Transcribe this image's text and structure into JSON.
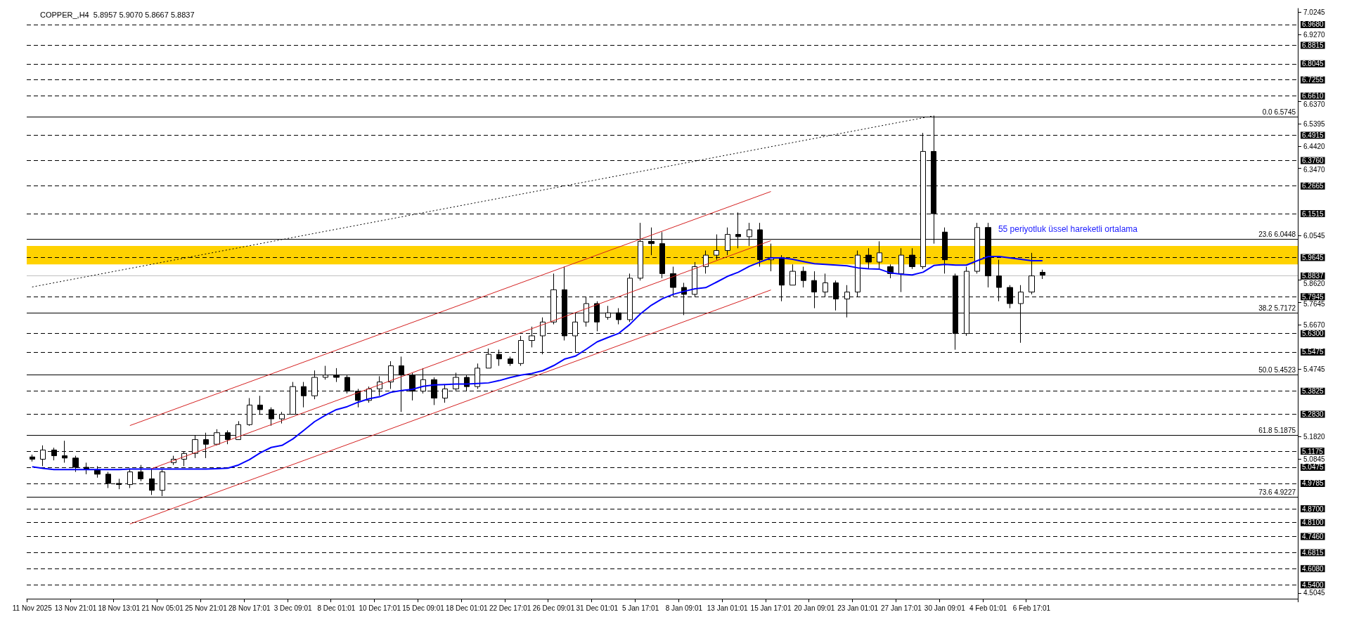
{
  "chart_data": {
    "type": "candlestick",
    "title": "COPPER_,H4  5.8957 5.9070 5.8667 5.8837",
    "categories": [
      "11 Nov 2025",
      null,
      null,
      null,
      "13 Nov 21:01",
      null,
      null,
      null,
      "18 Nov 13:01",
      null,
      null,
      null,
      "21 Nov 05:01",
      null,
      null,
      null,
      "25 Nov 21:01",
      null,
      null,
      null,
      "28 Nov 17:01",
      null,
      null,
      null,
      "3 Dec 09:01",
      null,
      null,
      null,
      "8 Dec 01:01",
      null,
      null,
      null,
      "10 Dec 17:01",
      null,
      null,
      null,
      "15 Dec 09:01",
      null,
      null,
      null,
      "18 Dec 01:01",
      null,
      null,
      null,
      "22 Dec 17:01",
      null,
      null,
      null,
      "26 Dec 09:01",
      null,
      null,
      null,
      "31 Dec 01:01",
      null,
      null,
      null,
      "5 Jan 17:01",
      null,
      null,
      null,
      "8 Jan 09:01",
      null,
      null,
      null,
      "13 Jan 01:01",
      null,
      null,
      null,
      "15 Jan 17:01",
      null,
      null,
      null,
      "20 Jan 09:01",
      null,
      null,
      null,
      "23 Jan 01:01",
      null,
      null,
      null,
      "27 Jan 17:01",
      null,
      null,
      null,
      "30 Jan 09:01",
      null,
      null,
      null,
      "4 Feb 01:01",
      null,
      null,
      null,
      "6 Feb 17:01",
      null,
      null,
      null,
      null,
      null,
      null,
      null,
      null,
      null,
      null,
      null,
      null,
      null,
      null,
      null,
      null,
      null,
      null,
      null,
      null,
      null,
      null,
      null,
      null
    ],
    "ohlc": [
      [
        5.095,
        5.105,
        5.075,
        5.085
      ],
      [
        5.085,
        5.145,
        5.055,
        5.125
      ],
      [
        5.125,
        5.135,
        5.08,
        5.1
      ],
      [
        5.1,
        5.165,
        5.07,
        5.09
      ],
      [
        5.09,
        5.1,
        5.03,
        5.05
      ],
      [
        5.05,
        5.07,
        5.02,
        5.04
      ],
      [
        5.04,
        5.055,
        5.005,
        5.02
      ],
      [
        5.02,
        5.03,
        4.96,
        4.98
      ],
      [
        4.98,
        5.0,
        4.955,
        4.975
      ],
      [
        4.975,
        5.045,
        4.96,
        5.03
      ],
      [
        5.03,
        5.06,
        4.99,
        5.0
      ],
      [
        5.0,
        5.045,
        4.93,
        4.95
      ],
      [
        4.95,
        5.04,
        4.925,
        5.03
      ],
      [
        5.07,
        5.1,
        5.06,
        5.085
      ],
      [
        5.085,
        5.12,
        5.055,
        5.11
      ],
      [
        5.11,
        5.19,
        5.09,
        5.17
      ],
      [
        5.17,
        5.2,
        5.09,
        5.15
      ],
      [
        5.15,
        5.215,
        5.145,
        5.2
      ],
      [
        5.2,
        5.21,
        5.15,
        5.17
      ],
      [
        5.17,
        5.25,
        5.17,
        5.235
      ],
      [
        5.235,
        5.35,
        5.23,
        5.32
      ],
      [
        5.32,
        5.36,
        5.28,
        5.3
      ],
      [
        5.3,
        5.31,
        5.23,
        5.26
      ],
      [
        5.26,
        5.29,
        5.24,
        5.28
      ],
      [
        5.28,
        5.42,
        5.28,
        5.4
      ],
      [
        5.4,
        5.42,
        5.31,
        5.36
      ],
      [
        5.36,
        5.47,
        5.345,
        5.44
      ],
      [
        5.44,
        5.49,
        5.43,
        5.45
      ],
      [
        5.45,
        5.48,
        5.42,
        5.44
      ],
      [
        5.44,
        5.45,
        5.37,
        5.38
      ],
      [
        5.38,
        5.39,
        5.31,
        5.34
      ],
      [
        5.34,
        5.4,
        5.33,
        5.39
      ],
      [
        5.39,
        5.445,
        5.36,
        5.42
      ],
      [
        5.42,
        5.51,
        5.39,
        5.49
      ],
      [
        5.49,
        5.53,
        5.29,
        5.45
      ],
      [
        5.45,
        5.46,
        5.34,
        5.38
      ],
      [
        5.38,
        5.48,
        5.37,
        5.43
      ],
      [
        5.43,
        5.44,
        5.32,
        5.35
      ],
      [
        5.35,
        5.41,
        5.33,
        5.39
      ],
      [
        5.39,
        5.46,
        5.38,
        5.44
      ],
      [
        5.44,
        5.45,
        5.38,
        5.4
      ],
      [
        5.4,
        5.5,
        5.39,
        5.48
      ],
      [
        5.48,
        5.565,
        5.48,
        5.54
      ],
      [
        5.54,
        5.56,
        5.49,
        5.52
      ],
      [
        5.52,
        5.53,
        5.49,
        5.5
      ],
      [
        5.5,
        5.62,
        5.49,
        5.6
      ],
      [
        5.6,
        5.66,
        5.57,
        5.62
      ],
      [
        5.62,
        5.7,
        5.54,
        5.68
      ],
      [
        5.68,
        5.89,
        5.67,
        5.82
      ],
      [
        5.82,
        5.92,
        5.6,
        5.62
      ],
      [
        5.62,
        5.72,
        5.55,
        5.68
      ],
      [
        5.68,
        5.79,
        5.66,
        5.76
      ],
      [
        5.76,
        5.77,
        5.64,
        5.68
      ],
      [
        5.7,
        5.75,
        5.69,
        5.72
      ],
      [
        5.72,
        5.74,
        5.67,
        5.69
      ],
      [
        5.69,
        5.89,
        5.68,
        5.87
      ],
      [
        5.87,
        6.11,
        5.86,
        6.03
      ],
      [
        6.03,
        6.09,
        5.97,
        6.02
      ],
      [
        6.02,
        6.07,
        5.87,
        5.89
      ],
      [
        5.89,
        5.92,
        5.79,
        5.83
      ],
      [
        5.83,
        5.85,
        5.71,
        5.8
      ],
      [
        5.8,
        5.94,
        5.79,
        5.92
      ],
      [
        5.92,
        5.99,
        5.89,
        5.97
      ],
      [
        5.97,
        6.06,
        5.95,
        5.99
      ],
      [
        5.99,
        6.09,
        5.97,
        6.06
      ],
      [
        6.06,
        6.155,
        6.0,
        6.05
      ],
      [
        6.05,
        6.11,
        6.01,
        6.08
      ],
      [
        6.08,
        6.11,
        5.92,
        5.95
      ],
      [
        5.95,
        6.02,
        5.9,
        5.96
      ],
      [
        5.96,
        5.97,
        5.77,
        5.84
      ],
      [
        5.84,
        5.93,
        5.84,
        5.9
      ],
      [
        5.9,
        5.92,
        5.83,
        5.86
      ],
      [
        5.86,
        5.9,
        5.74,
        5.81
      ],
      [
        5.81,
        5.89,
        5.79,
        5.85
      ],
      [
        5.85,
        5.86,
        5.73,
        5.78
      ],
      [
        5.78,
        5.84,
        5.7,
        5.81
      ],
      [
        5.81,
        5.99,
        5.79,
        5.97
      ],
      [
        5.97,
        6.0,
        5.91,
        5.94
      ],
      [
        5.94,
        6.03,
        5.91,
        5.98
      ],
      [
        5.92,
        5.93,
        5.87,
        5.89
      ],
      [
        5.89,
        6.0,
        5.81,
        5.97
      ],
      [
        5.97,
        6.0,
        5.91,
        5.92
      ],
      [
        5.92,
        6.5,
        5.91,
        6.42
      ],
      [
        6.42,
        6.5745,
        6.02,
        6.15
      ],
      [
        6.07,
        6.09,
        5.89,
        5.95
      ],
      [
        5.88,
        5.89,
        5.56,
        5.63
      ],
      [
        5.63,
        5.92,
        5.62,
        5.9
      ],
      [
        5.9,
        6.11,
        5.89,
        6.09
      ],
      [
        6.09,
        6.11,
        5.83,
        5.88
      ],
      [
        5.88,
        5.95,
        5.77,
        5.83
      ],
      [
        5.83,
        5.84,
        5.74,
        5.76
      ],
      [
        5.76,
        5.84,
        5.59,
        5.81
      ],
      [
        5.81,
        5.98,
        5.8,
        5.88
      ],
      [
        5.8957,
        5.907,
        5.8667,
        5.8837
      ],
      null,
      null,
      null,
      null,
      null,
      null,
      null,
      null,
      null,
      null,
      null,
      null,
      null,
      null,
      null,
      null,
      null,
      null,
      null,
      null,
      null,
      null,
      null
    ],
    "series": [
      {
        "type": "line",
        "color": "#0000ff",
        "values": [
          5.052,
          5.045,
          5.04,
          5.04,
          5.04,
          5.04,
          5.04,
          5.04,
          5.04,
          5.042,
          5.042,
          5.042,
          5.042,
          5.042,
          5.042,
          5.042,
          5.042,
          5.044,
          5.046,
          5.06,
          5.083,
          5.113,
          5.136,
          5.145,
          5.173,
          5.21,
          5.248,
          5.276,
          5.3,
          5.313,
          5.332,
          5.347,
          5.356,
          5.375,
          5.383,
          5.388,
          5.401,
          5.407,
          5.409,
          5.411,
          5.411,
          5.413,
          5.416,
          5.426,
          5.439,
          5.45,
          5.457,
          5.469,
          5.491,
          5.519,
          5.532,
          5.562,
          5.594,
          5.613,
          5.631,
          5.669,
          5.716,
          5.753,
          5.781,
          5.8,
          5.813,
          5.824,
          5.829,
          5.853,
          5.878,
          5.896,
          5.921,
          5.94,
          5.958,
          5.958,
          5.952,
          5.942,
          5.933,
          5.93,
          5.927,
          5.924,
          5.915,
          5.911,
          5.909,
          5.893,
          5.887,
          5.884,
          5.896,
          5.925,
          5.93,
          5.927,
          5.927,
          5.946,
          5.964,
          5.964,
          5.958,
          5.952,
          5.946,
          5.946,
          null,
          null,
          null,
          null,
          null,
          null,
          null,
          null,
          null,
          null,
          null,
          null,
          null,
          null,
          null,
          null,
          null,
          null,
          null,
          null,
          null,
          null,
          null
        ]
      },
      {
        "type": "line",
        "color": "#d42020",
        "values": [
          null,
          null,
          null,
          null,
          null,
          null,
          null,
          null,
          null,
          5.231,
          null,
          null,
          null,
          null,
          null,
          null,
          null,
          null,
          null,
          null,
          null,
          null,
          null,
          null,
          null,
          null,
          null,
          null,
          null,
          null,
          null,
          null,
          null,
          null,
          null,
          null,
          null,
          null,
          null,
          null,
          null,
          null,
          null,
          null,
          null,
          null,
          null,
          null,
          null,
          null,
          null,
          null,
          null,
          null,
          null,
          null,
          null,
          null,
          null,
          null,
          null,
          null,
          null,
          null,
          null,
          null,
          null,
          null,
          6.246,
          null,
          null,
          null,
          null,
          null,
          null,
          null,
          null,
          null,
          null,
          null,
          null,
          null,
          null,
          null,
          null,
          null,
          null,
          null,
          null,
          null,
          null,
          null,
          null,
          null,
          null,
          null,
          null,
          null,
          null,
          null,
          null,
          null,
          null,
          null,
          null,
          null,
          null,
          null,
          null,
          null,
          null,
          null,
          null,
          null,
          null,
          null,
          null
        ]
      },
      {
        "type": "line",
        "color": "#d42020",
        "values": [
          null,
          null,
          null,
          null,
          null,
          null,
          null,
          null,
          null,
          null,
          null,
          5.044,
          null,
          null,
          null,
          null,
          null,
          null,
          null,
          null,
          null,
          null,
          null,
          null,
          null,
          null,
          null,
          null,
          null,
          null,
          null,
          null,
          null,
          null,
          null,
          null,
          null,
          null,
          null,
          null,
          null,
          null,
          null,
          null,
          null,
          null,
          null,
          null,
          null,
          null,
          null,
          null,
          null,
          null,
          null,
          null,
          null,
          null,
          null,
          null,
          null,
          null,
          null,
          null,
          null,
          null,
          null,
          null,
          6.033,
          null,
          null,
          null,
          null,
          null,
          null,
          null,
          null,
          null,
          null,
          null,
          null,
          null,
          null,
          null,
          null,
          null,
          null,
          null,
          null,
          null,
          null,
          null,
          null,
          null,
          null,
          null,
          null,
          null,
          null,
          null,
          null,
          null,
          null,
          null,
          null,
          null,
          null,
          null,
          null,
          null,
          null,
          null,
          null,
          null,
          null,
          null,
          null
        ]
      },
      {
        "type": "line",
        "color": "#d42020",
        "values": [
          null,
          null,
          null,
          null,
          null,
          null,
          null,
          null,
          null,
          4.804,
          null,
          null,
          null,
          null,
          null,
          null,
          null,
          null,
          null,
          null,
          null,
          null,
          null,
          null,
          null,
          null,
          null,
          null,
          null,
          null,
          null,
          null,
          null,
          null,
          null,
          null,
          null,
          null,
          null,
          null,
          null,
          null,
          null,
          null,
          null,
          null,
          null,
          null,
          null,
          null,
          null,
          null,
          null,
          null,
          null,
          null,
          null,
          null,
          null,
          null,
          null,
          null,
          null,
          null,
          null,
          null,
          null,
          null,
          5.819,
          null,
          null,
          null,
          null,
          null,
          null,
          null,
          null,
          null,
          null,
          null,
          null,
          null,
          null,
          null,
          null,
          null,
          null,
          null,
          null,
          null,
          null,
          null,
          null,
          null,
          null,
          null,
          null,
          null,
          null,
          null,
          null,
          null,
          null,
          null,
          null,
          null,
          null,
          null,
          null,
          null,
          null,
          null,
          null,
          null,
          null,
          null,
          null
        ]
      },
      {
        "type": "line",
        "color": "#000000",
        "line_style": "dotted",
        "values": [
          5.832,
          null,
          null,
          null,
          null,
          null,
          null,
          null,
          null,
          null,
          null,
          null,
          null,
          null,
          null,
          null,
          null,
          null,
          null,
          null,
          null,
          null,
          null,
          null,
          null,
          null,
          null,
          null,
          null,
          null,
          null,
          null,
          null,
          null,
          null,
          null,
          null,
          null,
          null,
          null,
          null,
          null,
          null,
          null,
          null,
          null,
          null,
          null,
          null,
          null,
          null,
          null,
          null,
          null,
          null,
          null,
          null,
          null,
          null,
          null,
          null,
          null,
          null,
          null,
          null,
          null,
          null,
          null,
          null,
          null,
          null,
          null,
          null,
          null,
          null,
          null,
          null,
          null,
          null,
          null,
          null,
          null,
          null,
          6.5745,
          null,
          null,
          null,
          null,
          null,
          null,
          null,
          null,
          null,
          null,
          null,
          null,
          null,
          null,
          null,
          null,
          null,
          null,
          null,
          null,
          null,
          null,
          null,
          null,
          null,
          null,
          null,
          null,
          null,
          null,
          null,
          null,
          null
        ]
      }
    ],
    "ylim": [
      4.48,
      7.04
    ],
    "yticks": [
      7.0245,
      {
        "value": 6.927,
        "label": "6.9270"
      },
      {
        "value": 6.637,
        "label": "6.6370"
      },
      6.5395,
      {
        "value": 6.442,
        "label": "6.4420"
      },
      {
        "value": 6.347,
        "label": "6.3470"
      },
      6.0545,
      {
        "value": 5.862,
        "label": "5.8620"
      },
      5.7645,
      {
        "value": 5.667,
        "label": "5.6670"
      },
      5.4745,
      {
        "value": 5.182,
        "label": "5.1820"
      },
      5.0845,
      4.5045
    ],
    "ref_lines": [
      {
        "axis": "y",
        "value": 6.968,
        "label": "6.9680",
        "line_style": "dashed"
      },
      {
        "axis": "y",
        "value": 6.8815,
        "label": "6.8815",
        "line_style": "dashed"
      },
      {
        "axis": "y",
        "value": 6.8045,
        "label": "6.8045",
        "line_style": "dashed"
      },
      {
        "axis": "y",
        "value": 6.7255,
        "label": "6.7255",
        "line_style": "dashed"
      },
      {
        "axis": "y",
        "value": 6.661,
        "label": "6.6610",
        "line_style": "dashed"
      },
      {
        "axis": "y",
        "value": 6.4915,
        "label": "6.4915",
        "line_style": "dashed"
      },
      {
        "axis": "y",
        "value": 6.376,
        "label": "6.3760",
        "line_style": "dashed"
      },
      {
        "axis": "y",
        "value": 6.2665,
        "label": "6.2665",
        "line_style": "dashed"
      },
      {
        "axis": "y",
        "value": 6.1515,
        "label": "6.1515",
        "line_style": "dashed"
      },
      {
        "axis": "y",
        "value": 5.9645,
        "label": "5.9645",
        "line_style": "dashed"
      },
      {
        "axis": "y",
        "value": 5.7945,
        "label": "5.7945",
        "line_style": "dashed"
      },
      {
        "axis": "y",
        "value": 5.63,
        "label": "5.6300",
        "line_style": "dashed"
      },
      {
        "axis": "y",
        "value": 5.5475,
        "label": "5.5475",
        "line_style": "dashed"
      },
      {
        "axis": "y",
        "value": 5.3825,
        "label": "5.3825",
        "line_style": "dashed"
      },
      {
        "axis": "y",
        "value": 5.283,
        "label": "5.2830",
        "line_style": "dashed"
      },
      {
        "axis": "y",
        "value": 5.1175,
        "label": "5.1175",
        "line_style": "dashed"
      },
      {
        "axis": "y",
        "value": 5.0475,
        "label": "5.0475",
        "line_style": "dashed"
      },
      {
        "axis": "y",
        "value": 4.9785,
        "label": "4.9785",
        "line_style": "dashed"
      },
      {
        "axis": "y",
        "value": 4.87,
        "label": "4.8700",
        "line_style": "dashed"
      },
      {
        "axis": "y",
        "value": 4.81,
        "label": "4.8100",
        "line_style": "dashed"
      },
      {
        "axis": "y",
        "value": 4.746,
        "label": "4.7460",
        "line_style": "dashed"
      },
      {
        "axis": "y",
        "value": 4.6815,
        "label": "4.6815",
        "line_style": "dashed"
      },
      {
        "axis": "y",
        "value": 4.608,
        "label": "4.6080",
        "line_style": "dashed"
      },
      {
        "axis": "y",
        "value": 4.54,
        "label": "4.5400",
        "line_style": "dashed"
      },
      {
        "axis": "y",
        "value": 5.8837,
        "label": "5.8837",
        "line_style": "solid",
        "color": "#c0c0c0"
      },
      {
        "axis": "y",
        "value": 6.5745,
        "label": "0.0 6.5745",
        "line_style": "solid"
      },
      {
        "axis": "y",
        "value": 6.0448,
        "label": "23.6 6.0448",
        "line_style": "solid"
      },
      {
        "axis": "y",
        "value": 5.7172,
        "label": "38.2 5.7172",
        "line_style": "solid"
      },
      {
        "axis": "y",
        "value": 5.4523,
        "label": "50.0 5.4523",
        "line_style": "solid"
      },
      {
        "axis": "y",
        "value": 5.1875,
        "label": "61.8 5.1875",
        "line_style": "solid"
      },
      {
        "axis": "y",
        "value": 4.9227,
        "label": "73.6 4.9227",
        "line_style": "solid"
      }
    ],
    "bands": [
      {
        "axis": "y",
        "from": 5.93,
        "to": 6.01,
        "color": "#ffd200"
      }
    ],
    "annotations": [
      "55 periyotluk üssel hareketli ortalama"
    ],
    "grid": false
  }
}
